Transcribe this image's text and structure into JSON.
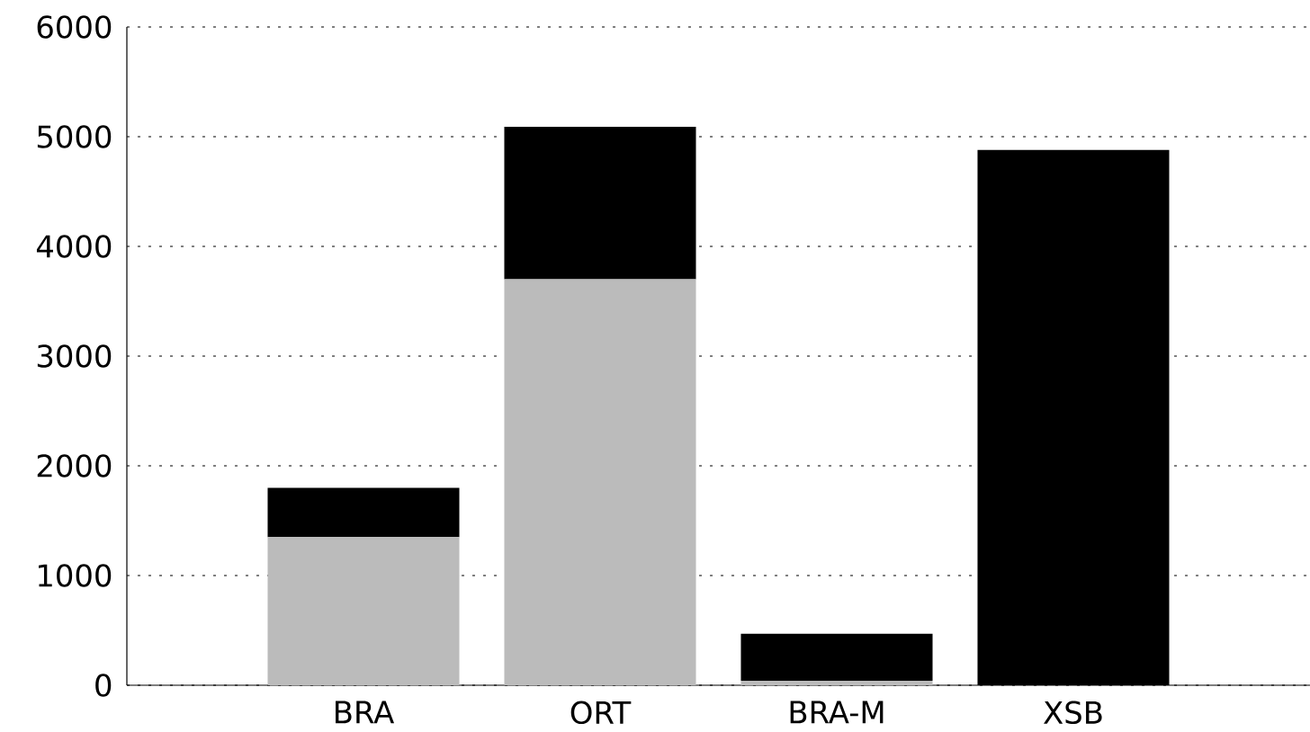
{
  "chart_data": {
    "type": "bar",
    "stacked": true,
    "categories": [
      "BRA",
      "ORT",
      "BRA-M",
      "XSB"
    ],
    "series": [
      {
        "color": "#bbbbbb",
        "values": [
          1350,
          3700,
          40,
          0
        ]
      },
      {
        "color": "#000000",
        "values": [
          450,
          1390,
          430,
          4880
        ]
      }
    ],
    "ylim": [
      0,
      6000
    ],
    "yticks": [
      0,
      1000,
      2000,
      3000,
      4000,
      5000,
      6000
    ],
    "grid": "y"
  }
}
